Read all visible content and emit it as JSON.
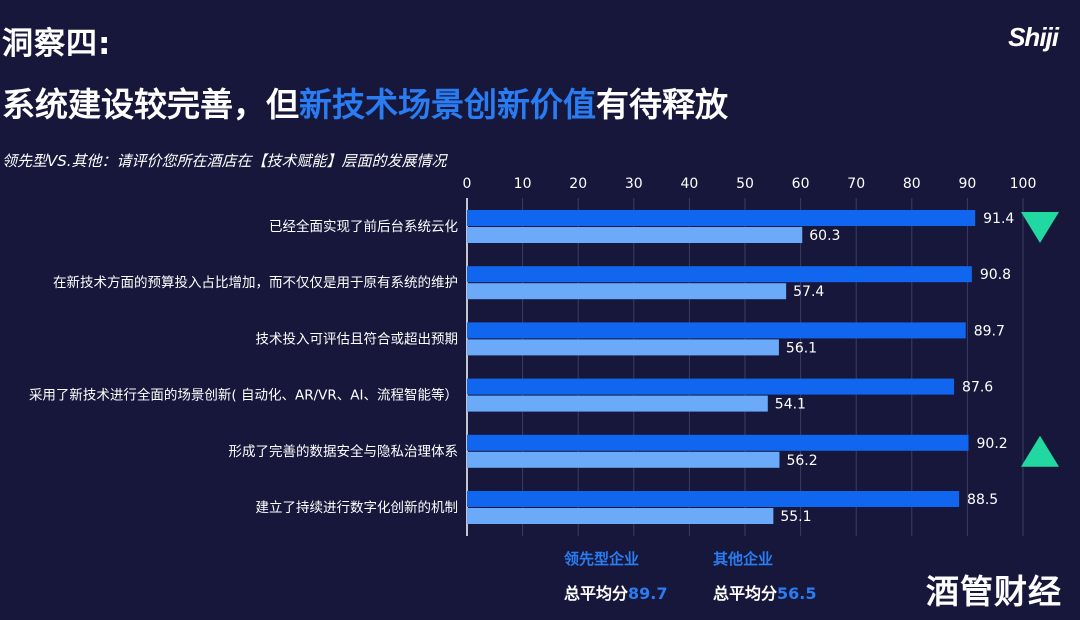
{
  "header": {
    "section_title": "洞察四:",
    "headline_pre": "系统建设较完善，但",
    "headline_highlight": "新技术场景创新价值",
    "headline_post": "有待释放",
    "subtitle": "领先型VS.其他：请评价您所在酒店在【技术赋能】层面的发展情况",
    "logo": "Shiji"
  },
  "colors": {
    "background": "#16173a",
    "leader_bar": "#1166f0",
    "other_bar": "#6aaaf8",
    "accent_text": "#2a7cf2",
    "arrow": "#20d8a0"
  },
  "chart_data": {
    "type": "bar",
    "orientation": "horizontal",
    "categories": [
      "已经全面实现了前后台系统云化",
      "在新技术方面的预算投入占比增加，而不仅仅是用于原有系统的维护",
      "技术投入可评估且符合或超出预期",
      "采用了新技术进行全面的场景创新( 自动化、AR/VR、AI、流程智能等）",
      "形成了完善的数据安全与隐私治理体系",
      "建立了持续进行数字化创新的机制"
    ],
    "series": [
      {
        "name": "领先型企业",
        "values": [
          91.4,
          90.8,
          89.7,
          87.6,
          90.2,
          88.5
        ]
      },
      {
        "name": "其他企业",
        "values": [
          60.3,
          57.4,
          56.1,
          54.1,
          56.2,
          55.1
        ]
      }
    ],
    "value_labels": {
      "leader": [
        "91.4",
        "90.8",
        "89.7",
        "87.6",
        "90.2",
        "88.5"
      ],
      "other": [
        "60.3",
        "57.4",
        "56.1",
        "54.1",
        "56.2",
        "55.1"
      ]
    },
    "xlim": [
      0,
      100
    ],
    "xticks": [
      0,
      10,
      20,
      30,
      40,
      50,
      60,
      70,
      80,
      90,
      100
    ],
    "tick_labels": [
      "0",
      "10",
      "20",
      "30",
      "40",
      "50",
      "60",
      "70",
      "80",
      "90",
      "100"
    ],
    "axis_position": "top",
    "markers": [
      {
        "category_index": 0,
        "shape": "triangle-down"
      },
      {
        "category_index": 4,
        "shape": "triangle-up"
      }
    ]
  },
  "legend": {
    "leader_name": "领先型企业",
    "other_name": "其他企业",
    "avg_prefix": "总平均分",
    "leader_avg": "89.7",
    "other_avg": "56.5"
  },
  "watermark": "酒管财经"
}
